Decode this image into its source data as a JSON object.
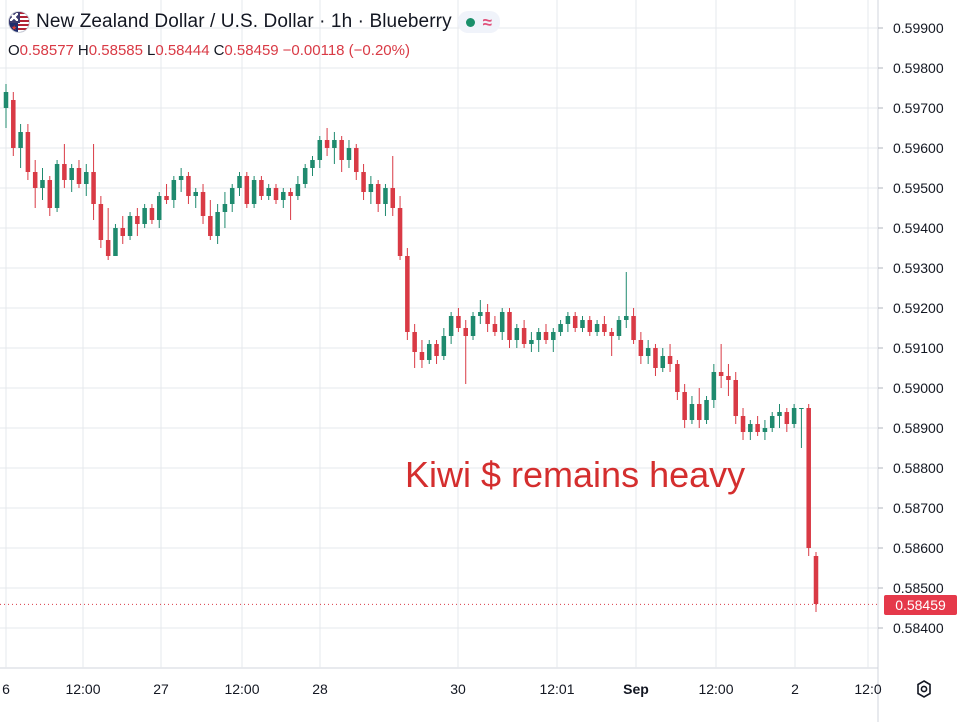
{
  "header": {
    "symbol_title": "New Zealand Dollar / U.S. Dollar · 1h · Blueberry",
    "flag_icon": "nzd-usd-flag-icon",
    "status_icons": [
      "live-dot-icon",
      "waves-icon"
    ],
    "ohlc": {
      "open_label": "O",
      "open": "0.58577",
      "high_label": "H",
      "high": "0.58585",
      "low_label": "L",
      "low": "0.58444",
      "close_label": "C",
      "close": "0.58459",
      "change": "−0.00118 (−0.20%)"
    }
  },
  "annotation": "Kiwi $ remains heavy",
  "last_price_badge": "0.58459",
  "colors": {
    "up": "#1f8a6e",
    "down": "#d93a45",
    "annotation": "#d42e2e",
    "badge": "#e5394a",
    "grid": "#e6e8ec"
  },
  "chart_data": {
    "type": "candlestick",
    "x_tick_labels": [
      "6",
      "12:00",
      "27",
      "12:00",
      "28",
      "30",
      "12:01",
      "Sep",
      "12:00",
      "2",
      "12:0"
    ],
    "y_tick_labels": [
      "0.59900",
      "0.59800",
      "0.59700",
      "0.59600",
      "0.59500",
      "0.59400",
      "0.59300",
      "0.59200",
      "0.59100",
      "0.59000",
      "0.58900",
      "0.58800",
      "0.58700",
      "0.58600",
      "0.58500",
      "0.58400"
    ],
    "ylim": [
      0.5836,
      0.5993
    ],
    "grid": true,
    "last_price": 0.58459,
    "candles": [
      [
        0.597,
        0.5976,
        0.5965,
        0.5974
      ],
      [
        0.5972,
        0.5974,
        0.5958,
        0.596
      ],
      [
        0.596,
        0.5966,
        0.5955,
        0.5964
      ],
      [
        0.5964,
        0.5966,
        0.5952,
        0.5954
      ],
      [
        0.5954,
        0.5957,
        0.5945,
        0.595
      ],
      [
        0.595,
        0.5955,
        0.5947,
        0.5952
      ],
      [
        0.5952,
        0.5953,
        0.5943,
        0.5945
      ],
      [
        0.5945,
        0.5957,
        0.5944,
        0.5956
      ],
      [
        0.5956,
        0.5961,
        0.595,
        0.5952
      ],
      [
        0.5952,
        0.5956,
        0.5949,
        0.5955
      ],
      [
        0.5955,
        0.5957,
        0.595,
        0.5951
      ],
      [
        0.5951,
        0.5956,
        0.5948,
        0.5954
      ],
      [
        0.5954,
        0.5961,
        0.5942,
        0.5946
      ],
      [
        0.5946,
        0.5948,
        0.5935,
        0.5937
      ],
      [
        0.5937,
        0.5945,
        0.5932,
        0.5933
      ],
      [
        0.5933,
        0.5941,
        0.5933,
        0.594
      ],
      [
        0.594,
        0.5943,
        0.5936,
        0.5938
      ],
      [
        0.5938,
        0.5944,
        0.5937,
        0.5943
      ],
      [
        0.5943,
        0.5945,
        0.5938,
        0.5941
      ],
      [
        0.5941,
        0.5946,
        0.594,
        0.5945
      ],
      [
        0.5945,
        0.5946,
        0.5941,
        0.5942
      ],
      [
        0.5942,
        0.5949,
        0.594,
        0.5948
      ],
      [
        0.5948,
        0.5951,
        0.5946,
        0.5947
      ],
      [
        0.5947,
        0.5953,
        0.5945,
        0.5952
      ],
      [
        0.5952,
        0.5955,
        0.5949,
        0.5953
      ],
      [
        0.5953,
        0.5954,
        0.5946,
        0.5948
      ],
      [
        0.5948,
        0.595,
        0.5945,
        0.5949
      ],
      [
        0.5949,
        0.5951,
        0.5941,
        0.5943
      ],
      [
        0.5943,
        0.5947,
        0.5937,
        0.5938
      ],
      [
        0.5938,
        0.5946,
        0.5936,
        0.5944
      ],
      [
        0.5944,
        0.5949,
        0.594,
        0.5946
      ],
      [
        0.5946,
        0.5951,
        0.5944,
        0.595
      ],
      [
        0.595,
        0.5954,
        0.5948,
        0.5953
      ],
      [
        0.5953,
        0.5954,
        0.5945,
        0.5946
      ],
      [
        0.5946,
        0.5953,
        0.5945,
        0.5952
      ],
      [
        0.5952,
        0.5953,
        0.5947,
        0.5948
      ],
      [
        0.5948,
        0.5951,
        0.5947,
        0.595
      ],
      [
        0.595,
        0.5951,
        0.5946,
        0.5947
      ],
      [
        0.5947,
        0.595,
        0.5945,
        0.5949
      ],
      [
        0.5949,
        0.595,
        0.5942,
        0.5948
      ],
      [
        0.5948,
        0.5953,
        0.5947,
        0.5951
      ],
      [
        0.5951,
        0.5956,
        0.595,
        0.5955
      ],
      [
        0.5955,
        0.5958,
        0.5953,
        0.5957
      ],
      [
        0.5957,
        0.5963,
        0.5955,
        0.5962
      ],
      [
        0.5962,
        0.5965,
        0.5958,
        0.596
      ],
      [
        0.596,
        0.5964,
        0.5956,
        0.5962
      ],
      [
        0.5962,
        0.5963,
        0.5954,
        0.5957
      ],
      [
        0.5957,
        0.5962,
        0.5955,
        0.596
      ],
      [
        0.596,
        0.5961,
        0.5952,
        0.5954
      ],
      [
        0.5954,
        0.5956,
        0.5947,
        0.5949
      ],
      [
        0.5949,
        0.5953,
        0.5946,
        0.5951
      ],
      [
        0.5951,
        0.5952,
        0.5944,
        0.5946
      ],
      [
        0.5946,
        0.5951,
        0.5943,
        0.595
      ],
      [
        0.595,
        0.5958,
        0.5943,
        0.5945
      ],
      [
        0.5945,
        0.5948,
        0.5932,
        0.5933
      ],
      [
        0.5933,
        0.5935,
        0.5912,
        0.5914
      ],
      [
        0.5914,
        0.5916,
        0.5905,
        0.5909
      ],
      [
        0.5909,
        0.5912,
        0.5905,
        0.5907
      ],
      [
        0.5907,
        0.5912,
        0.5906,
        0.5911
      ],
      [
        0.5911,
        0.5912,
        0.5906,
        0.5908
      ],
      [
        0.5908,
        0.5915,
        0.5907,
        0.5913
      ],
      [
        0.5913,
        0.5919,
        0.5911,
        0.5918
      ],
      [
        0.5918,
        0.592,
        0.5914,
        0.5915
      ],
      [
        0.5915,
        0.5917,
        0.5901,
        0.5913
      ],
      [
        0.5913,
        0.5919,
        0.5912,
        0.5918
      ],
      [
        0.5918,
        0.5922,
        0.5916,
        0.5919
      ],
      [
        0.5919,
        0.5921,
        0.5914,
        0.5916
      ],
      [
        0.5916,
        0.5918,
        0.5913,
        0.5914
      ],
      [
        0.5914,
        0.592,
        0.5912,
        0.5919
      ],
      [
        0.5919,
        0.592,
        0.591,
        0.5912
      ],
      [
        0.5912,
        0.5916,
        0.591,
        0.5915
      ],
      [
        0.5915,
        0.5917,
        0.591,
        0.5911
      ],
      [
        0.5911,
        0.5914,
        0.5909,
        0.5912
      ],
      [
        0.5912,
        0.5915,
        0.5909,
        0.5914
      ],
      [
        0.5914,
        0.5916,
        0.5911,
        0.5912
      ],
      [
        0.5912,
        0.5915,
        0.5909,
        0.5914
      ],
      [
        0.5914,
        0.5917,
        0.5913,
        0.5916
      ],
      [
        0.5916,
        0.5919,
        0.5914,
        0.5918
      ],
      [
        0.5918,
        0.5919,
        0.5914,
        0.5915
      ],
      [
        0.5915,
        0.5918,
        0.5914,
        0.5917
      ],
      [
        0.5917,
        0.5918,
        0.5913,
        0.5914
      ],
      [
        0.5914,
        0.5917,
        0.5913,
        0.5916
      ],
      [
        0.5916,
        0.5918,
        0.5913,
        0.5914
      ],
      [
        0.5914,
        0.5915,
        0.5908,
        0.5913
      ],
      [
        0.5913,
        0.5918,
        0.5912,
        0.5917
      ],
      [
        0.5917,
        0.5929,
        0.5915,
        0.5918
      ],
      [
        0.5918,
        0.592,
        0.5911,
        0.5912
      ],
      [
        0.5912,
        0.5914,
        0.5906,
        0.5908
      ],
      [
        0.5908,
        0.5912,
        0.5906,
        0.591
      ],
      [
        0.591,
        0.5911,
        0.5903,
        0.5905
      ],
      [
        0.5905,
        0.591,
        0.5904,
        0.5908
      ],
      [
        0.5908,
        0.5911,
        0.5904,
        0.5906
      ],
      [
        0.5906,
        0.5907,
        0.5897,
        0.5899
      ],
      [
        0.5899,
        0.5901,
        0.589,
        0.5892
      ],
      [
        0.5892,
        0.5898,
        0.5891,
        0.5896
      ],
      [
        0.5896,
        0.59,
        0.589,
        0.5892
      ],
      [
        0.5892,
        0.5898,
        0.5891,
        0.5897
      ],
      [
        0.5897,
        0.5906,
        0.5895,
        0.5904
      ],
      [
        0.5904,
        0.5911,
        0.59,
        0.5903
      ],
      [
        0.5903,
        0.5906,
        0.5898,
        0.5902
      ],
      [
        0.5902,
        0.5904,
        0.5891,
        0.5893
      ],
      [
        0.5893,
        0.5895,
        0.5887,
        0.5889
      ],
      [
        0.5889,
        0.5892,
        0.5887,
        0.5891
      ],
      [
        0.5891,
        0.5893,
        0.5888,
        0.5889
      ],
      [
        0.5889,
        0.5892,
        0.5887,
        0.589
      ],
      [
        0.589,
        0.5894,
        0.5889,
        0.5893
      ],
      [
        0.5893,
        0.5896,
        0.589,
        0.5894
      ],
      [
        0.5894,
        0.5895,
        0.5889,
        0.5891
      ],
      [
        0.5891,
        0.5896,
        0.589,
        0.5895
      ],
      [
        0.5895,
        0.5895,
        0.5885,
        0.5895
      ],
      [
        0.5895,
        0.5896,
        0.5858,
        0.586
      ],
      [
        0.5858,
        0.5859,
        0.5844,
        0.5846
      ]
    ]
  }
}
